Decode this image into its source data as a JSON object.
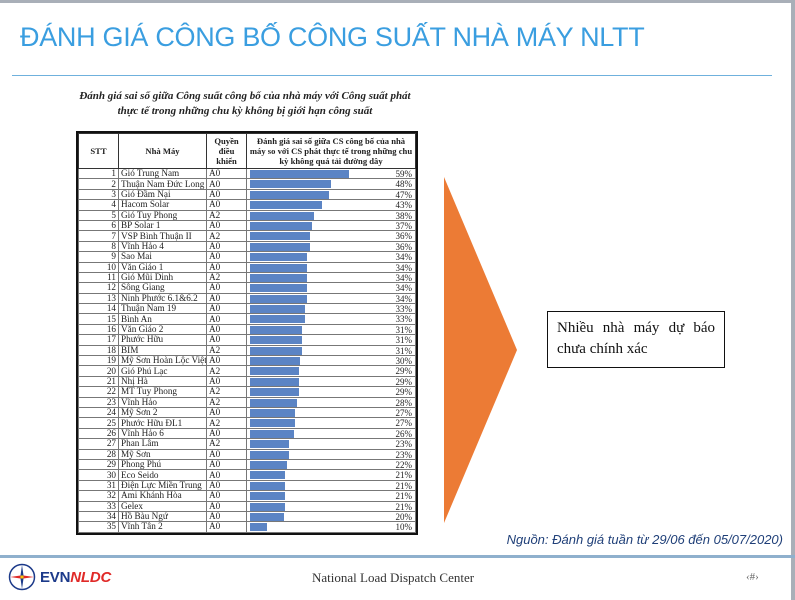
{
  "slide": {
    "title": "ĐÁNH GIÁ CÔNG BỐ CÔNG SUẤT NHÀ MÁY NLTT",
    "colors": {
      "title": "#3a9ee0",
      "bar": "#5b84c4",
      "arrow": "#ec7b35",
      "source_text": "#1f3f78"
    }
  },
  "table": {
    "caption_line1": "Đánh giá sai số giữa Công suất công bố của nhà máy với Công suất phát",
    "caption_line2": "thực tế trong những chu kỳ không bị giới hạn công suất",
    "headers": {
      "stt": "STT",
      "name": "Nhà Máy",
      "control": "Quyền điều khiển",
      "evaluation": "Đánh giá sai số giữa CS công bố của nhà máy so với CS phát thực tế trong những chu kỳ không quá tải đường dây"
    },
    "rows": [
      {
        "stt": "1",
        "name": "Gió Trung Nam",
        "control": "A0",
        "value": 59,
        "label": "59%"
      },
      {
        "stt": "2",
        "name": "Thuận Nam Đức Long",
        "control": "A0",
        "value": 48,
        "label": "48%"
      },
      {
        "stt": "3",
        "name": "Gió Đầm Nại",
        "control": "A0",
        "value": 47,
        "label": "47%"
      },
      {
        "stt": "4",
        "name": "Hacom Solar",
        "control": "A0",
        "value": 43,
        "label": "43%"
      },
      {
        "stt": "5",
        "name": "Gió Tuy Phong",
        "control": "A2",
        "value": 38,
        "label": "38%"
      },
      {
        "stt": "6",
        "name": "BP Solar 1",
        "control": "A0",
        "value": 37,
        "label": "37%"
      },
      {
        "stt": "7",
        "name": "VSP Bình Thuận II",
        "control": "A2",
        "value": 36,
        "label": "36%"
      },
      {
        "stt": "8",
        "name": "Vĩnh Hảo 4",
        "control": "A0",
        "value": 36,
        "label": "36%"
      },
      {
        "stt": "9",
        "name": "Sao Mai",
        "control": "A0",
        "value": 34,
        "label": "34%"
      },
      {
        "stt": "10",
        "name": "Văn Giáo 1",
        "control": "A0",
        "value": 34,
        "label": "34%"
      },
      {
        "stt": "11",
        "name": "Gió Mũi Dinh",
        "control": "A2",
        "value": 34,
        "label": "34%"
      },
      {
        "stt": "12",
        "name": "Sông Giang",
        "control": "A0",
        "value": 34,
        "label": "34%"
      },
      {
        "stt": "13",
        "name": "Ninh Phước 6.1&6.2",
        "control": "A0",
        "value": 34,
        "label": "34%"
      },
      {
        "stt": "14",
        "name": "Thuận Nam 19",
        "control": "A0",
        "value": 33,
        "label": "33%"
      },
      {
        "stt": "15",
        "name": "Bình An",
        "control": "A0",
        "value": 33,
        "label": "33%"
      },
      {
        "stt": "16",
        "name": "Văn Giáo 2",
        "control": "A0",
        "value": 31,
        "label": "31%"
      },
      {
        "stt": "17",
        "name": "Phước Hữu",
        "control": "A0",
        "value": 31,
        "label": "31%"
      },
      {
        "stt": "18",
        "name": "BIM",
        "control": "A2",
        "value": 31,
        "label": "31%"
      },
      {
        "stt": "19",
        "name": "Mỹ Sơn Hoàn Lộc Việt",
        "control": "A0",
        "value": 30,
        "label": "30%"
      },
      {
        "stt": "20",
        "name": "Gió Phú Lạc",
        "control": "A2",
        "value": 29,
        "label": "29%"
      },
      {
        "stt": "21",
        "name": "Nhị Hà",
        "control": "A0",
        "value": 29,
        "label": "29%"
      },
      {
        "stt": "22",
        "name": "MT Tuy Phong",
        "control": "A2",
        "value": 29,
        "label": "29%"
      },
      {
        "stt": "23",
        "name": "Vĩnh Hảo",
        "control": "A2",
        "value": 28,
        "label": "28%"
      },
      {
        "stt": "24",
        "name": "Mỹ Sơn 2",
        "control": "A0",
        "value": 27,
        "label": "27%"
      },
      {
        "stt": "25",
        "name": "Phước Hữu ĐL1",
        "control": "A2",
        "value": 27,
        "label": "27%"
      },
      {
        "stt": "26",
        "name": "Vĩnh Hảo 6",
        "control": "A0",
        "value": 26,
        "label": "26%"
      },
      {
        "stt": "27",
        "name": "Phan Lâm",
        "control": "A2",
        "value": 23,
        "label": "23%"
      },
      {
        "stt": "28",
        "name": "Mỹ Sơn",
        "control": "A0",
        "value": 23,
        "label": "23%"
      },
      {
        "stt": "29",
        "name": "Phong Phú",
        "control": "A0",
        "value": 22,
        "label": "22%"
      },
      {
        "stt": "30",
        "name": "Eco Seido",
        "control": "A0",
        "value": 21,
        "label": "21%"
      },
      {
        "stt": "31",
        "name": "Điện Lực Miền Trung",
        "control": "A0",
        "value": 21,
        "label": "21%"
      },
      {
        "stt": "32",
        "name": "Ami Khánh Hòa",
        "control": "A0",
        "value": 21,
        "label": "21%"
      },
      {
        "stt": "33",
        "name": "Gelex",
        "control": "A0",
        "value": 21,
        "label": "21%"
      },
      {
        "stt": "34",
        "name": "Hồ Bàu Ngứ",
        "control": "A0",
        "value": 20,
        "label": "20%"
      },
      {
        "stt": "35",
        "name": "Vĩnh Tân 2",
        "control": "A0",
        "value": 10,
        "label": "10%"
      }
    ]
  },
  "callout": {
    "text": "Nhiều nhà máy dự báo chưa chính xác"
  },
  "source": {
    "text": "Nguồn: Đánh giá tuần từ 29/06 đến 05/07/2020)"
  },
  "footer": {
    "logo_evn": "EVN",
    "logo_nldc": "NLDC",
    "center_text": "National Load Dispatch Center",
    "page_number": "‹#›"
  }
}
